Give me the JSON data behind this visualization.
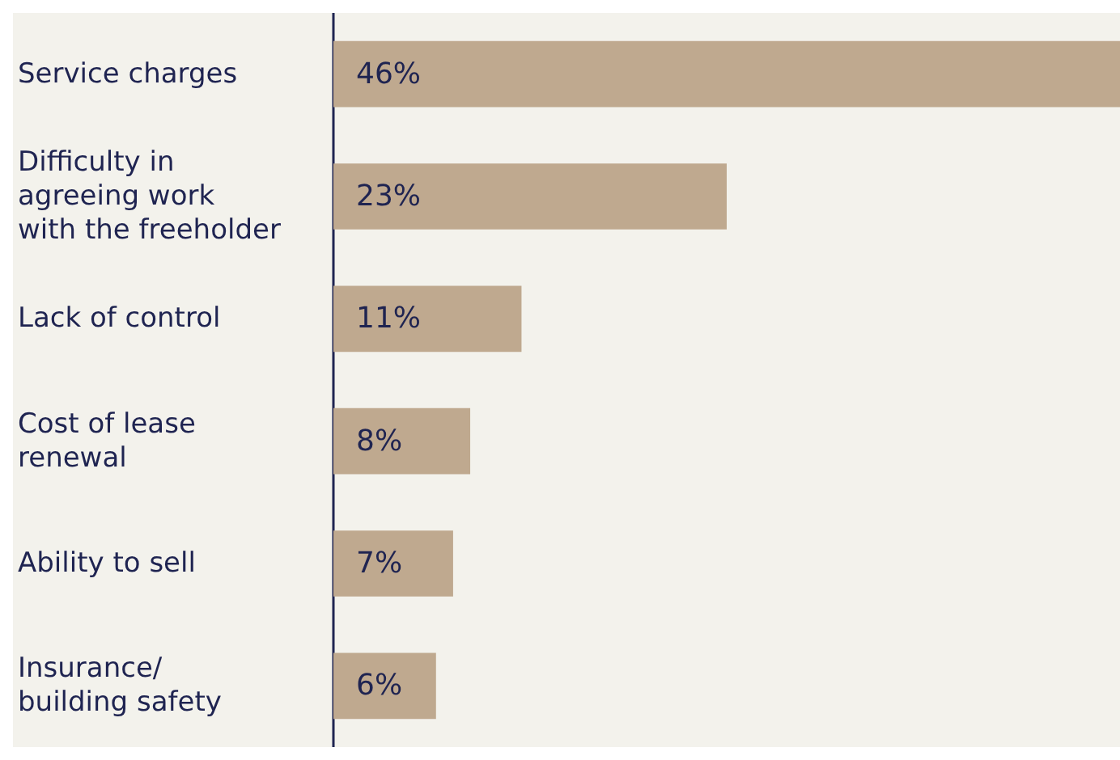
{
  "chart_data": {
    "type": "bar",
    "orientation": "horizontal",
    "categories": [
      "Service charges",
      "Difficulty in\nagreeing work\nwith the freeholder",
      "Lack of control",
      "Cost of lease\nrenewal",
      "Ability to sell",
      "Insurance/\nbuilding safety"
    ],
    "values": [
      46,
      23,
      11,
      8,
      7,
      6
    ],
    "value_labels": [
      "46%",
      "23%",
      "11%",
      "8%",
      "7%",
      "6%"
    ],
    "color": "#bfa98f",
    "xlim": [
      0,
      46
    ],
    "tick_labels": "y"
  }
}
